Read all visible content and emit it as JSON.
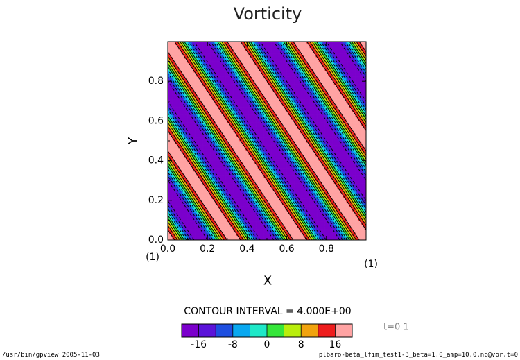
{
  "chart_data": {
    "type": "heatmap",
    "title": "Vorticity",
    "xlabel": "X",
    "ylabel": "Y",
    "xlim": [
      0.0,
      1.0
    ],
    "ylim": [
      0.0,
      1.0
    ],
    "x_ticks": [
      "0.0",
      "0.2",
      "0.4",
      "0.6",
      "0.8"
    ],
    "y_ticks": [
      "0.0",
      "0.2",
      "0.4",
      "0.6",
      "0.8"
    ],
    "x_axis_index": "(1)",
    "y_axis_index": "(1)",
    "pattern": {
      "form": "diagonal bands, A*cos(2*pi*(k*x + l*y))",
      "k": 3,
      "l": 2,
      "amplitude": 20
    },
    "contour_interval_text": "CONTOUR INTERVAL = 4.000E+00",
    "colorbar": {
      "levels": [
        -20,
        -16,
        -12,
        -8,
        -4,
        0,
        4,
        8,
        12,
        16,
        20
      ],
      "colors": [
        "#7b00cc",
        "#5b13d9",
        "#1e4fe0",
        "#09a8f0",
        "#1ee8c8",
        "#36e63a",
        "#b9ee0c",
        "#f1a30e",
        "#ee1d1d",
        "#ffa3a3"
      ],
      "tick_labels": [
        "-16",
        "-8",
        "0",
        "8",
        "16"
      ],
      "tick_values": [
        -16,
        -8,
        0,
        8,
        16
      ]
    },
    "time_label": "t=0 1"
  },
  "footer": {
    "left": "/usr/bin/gpview  2005-11-03",
    "right": "plbaro-beta_lfim_test1-3_beta=1.0_amp=10.0.nc@vor,t=0"
  }
}
